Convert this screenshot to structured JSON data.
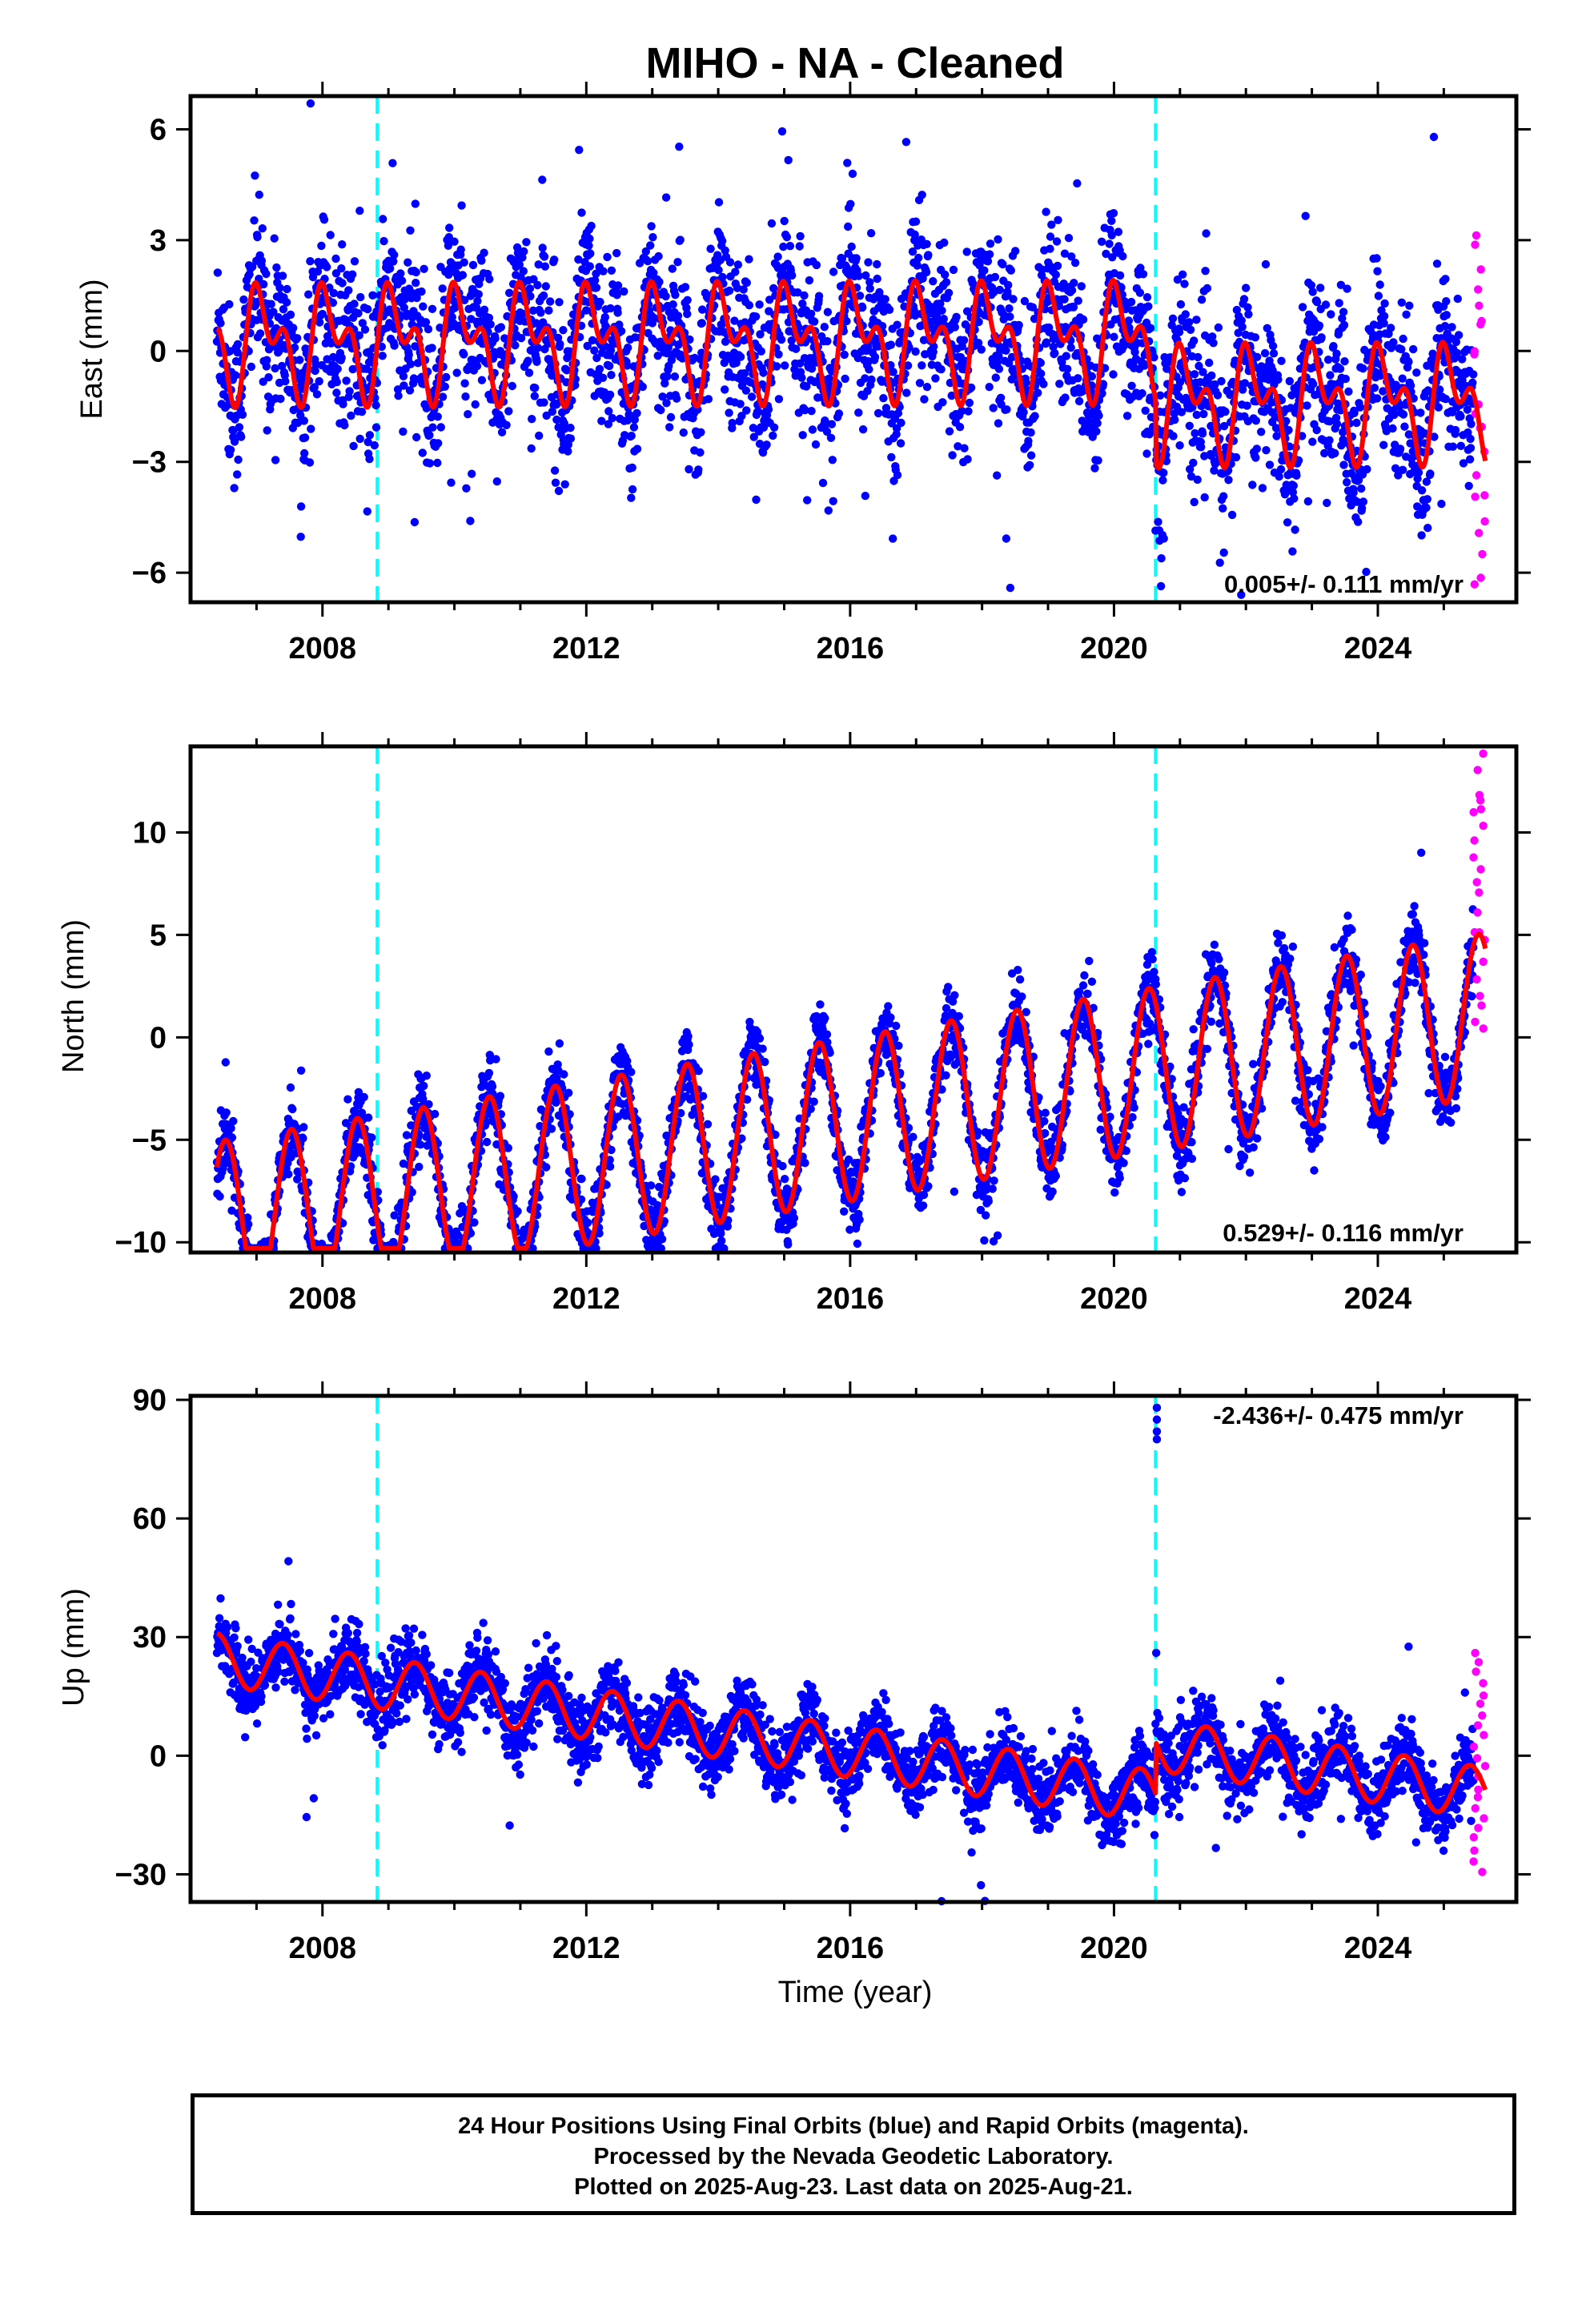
{
  "title": "MIHO  - NA - Cleaned",
  "xlabel": "Time (year)",
  "footer": {
    "line1": "24 Hour Positions Using Final Orbits (blue) and Rapid Orbits (magenta).",
    "line2": "Processed by the Nevada Geodetic Laboratory.",
    "line3": "Plotted on 2025-Aug-23. Last data on 2025-Aug-21."
  },
  "colors": {
    "final_orbits": "#0000ff",
    "rapid_orbits": "#ff00ff",
    "model": "#ff0000",
    "equipment_change": "#00ffff"
  },
  "chart_data": [
    {
      "type": "scatter",
      "component": "east",
      "ylabel": "East (mm)",
      "xlim": [
        2006.0,
        2026.1
      ],
      "ylim": [
        -6.8,
        6.9
      ],
      "xticks": [
        2008,
        2012,
        2016,
        2020,
        2024
      ],
      "yticks": [
        -6,
        -3,
        0,
        3,
        6
      ],
      "ytick_labels": [
        "−6",
        "−3",
        "0",
        "3",
        "6"
      ],
      "rate_text": "0.005+/- 0.111 mm/yr",
      "rate_position": "bottom-right",
      "start": 2006.4,
      "final_end": 2025.45,
      "rapid_start": 2025.45,
      "end": 2025.63,
      "vertical_lines": [
        2008.83,
        2020.63
      ],
      "model": {
        "trend_mm_per_yr": 0.005,
        "segments": [
          {
            "from": 2006.4,
            "to": 2020.63,
            "offset": 0.3
          },
          {
            "from": 2020.63,
            "to": 2025.63,
            "offset": -1.4
          }
        ],
        "annual_amplitude": 1.1,
        "annual_phase": 0.1,
        "semiannual_amplitude": 0.85,
        "semiannual_phase": 0.45,
        "noise_sd": 1.1
      },
      "rapid_range": [
        -6.5,
        3.2
      ]
    },
    {
      "type": "scatter",
      "component": "north",
      "ylabel": "North (mm)",
      "xlim": [
        2006.0,
        2026.1
      ],
      "ylim": [
        -10.5,
        14.2
      ],
      "xticks": [
        2008,
        2012,
        2016,
        2020,
        2024
      ],
      "yticks": [
        -10,
        -5,
        0,
        5,
        10
      ],
      "ytick_labels": [
        "−10",
        "−5",
        "0",
        "5",
        "10"
      ],
      "rate_text": "0.529+/- 0.116 mm/yr",
      "rate_position": "bottom-right",
      "start": 2006.4,
      "final_end": 2025.45,
      "rapid_start": 2025.45,
      "end": 2025.63,
      "vertical_lines": [
        2008.83,
        2020.63
      ],
      "model": {
        "trend_mm_per_yr": 0.529,
        "segments": [
          {
            "from": 2006.4,
            "to": 2020.63,
            "offset": -4.0
          },
          {
            "from": 2020.63,
            "to": 2025.63,
            "offset": -4.0
          }
        ],
        "annual_amplitude": 4.0,
        "annual_phase": 0.53,
        "semiannual_amplitude": 0.0,
        "semiannual_phase": 0.0,
        "noise_sd": 0.9
      },
      "rapid_range": [
        0.5,
        13.8
      ]
    },
    {
      "type": "scatter",
      "component": "up",
      "ylabel": "Up (mm)",
      "xlim": [
        2006.0,
        2026.1
      ],
      "ylim": [
        -37,
        91
      ],
      "xticks": [
        2008,
        2012,
        2016,
        2020,
        2024
      ],
      "yticks": [
        -30,
        0,
        30,
        60,
        90
      ],
      "ytick_labels": [
        "−30",
        "0",
        "30",
        "60",
        "90"
      ],
      "rate_text": "-2.436+/- 0.475 mm/yr",
      "rate_position": "top-right",
      "start": 2006.4,
      "final_end": 2025.45,
      "rapid_start": 2025.45,
      "end": 2025.63,
      "vertical_lines": [
        2008.83,
        2020.63
      ],
      "model": {
        "trend_mm_per_yr": -2.436,
        "segments": [
          {
            "from": 2006.4,
            "to": 2020.63,
            "offset": 1.0
          },
          {
            "from": 2020.63,
            "to": 2025.63,
            "offset": 14.0
          }
        ],
        "annual_amplitude": 6.5,
        "annual_phase": 0.4,
        "semiannual_amplitude": 0.0,
        "semiannual_phase": 0.0,
        "noise_sd": 4.5
      },
      "outliers": [
        [
          2020.65,
          88.0
        ],
        [
          2020.65,
          85.0
        ],
        [
          2020.65,
          82.0
        ],
        [
          2020.65,
          80.0
        ],
        [
          2020.64,
          26.0
        ]
      ],
      "rapid_range": [
        -29.0,
        26.0
      ]
    }
  ]
}
